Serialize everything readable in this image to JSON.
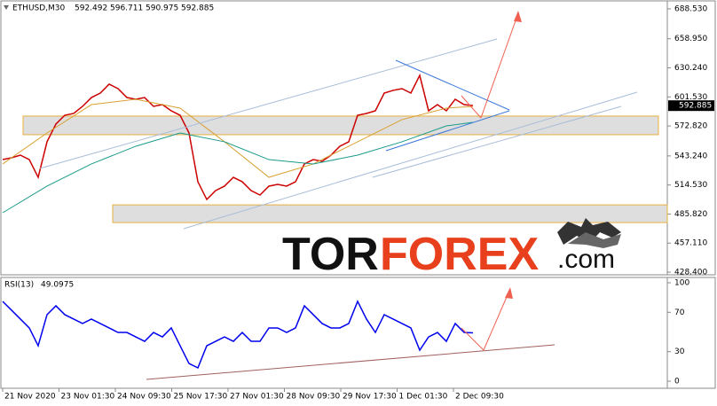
{
  "chart_data": [
    {
      "type": "line",
      "symbol": "ETHUSD,M30",
      "ohlc": [
        592.492,
        596.711,
        590.975,
        592.885
      ],
      "current_price": 592.885,
      "x_tick_labels": [
        "21 Nov 2020",
        "23 Nov 01:30",
        "24 Nov 09:30",
        "25 Nov 17:30",
        "27 Nov 01:30",
        "28 Nov 09:30",
        "29 Nov 17:30",
        "1 Dec 01:30",
        "2 Dec 09:30"
      ],
      "ylim": [
        425.8,
        695.5
      ],
      "yticks": [
        {
          "value": 688.53,
          "label": "688.530"
        },
        {
          "value": 658.95,
          "label": "658.950"
        },
        {
          "value": 630.24,
          "label": "630.240"
        },
        {
          "value": 601.53,
          "label": "601.530"
        },
        {
          "value": 572.82,
          "label": "572.820"
        },
        {
          "value": 543.24,
          "label": "543.240"
        },
        {
          "value": 514.53,
          "label": "514.530"
        },
        {
          "value": 485.82,
          "label": "485.820"
        },
        {
          "value": 457.11,
          "label": "457.110"
        },
        {
          "value": 428.4,
          "label": "428.400"
        }
      ],
      "series": [
        {
          "color": "#cc0000",
          "values": [
            539.6,
            541.4,
            544.0,
            539.6,
            522.1,
            557.2,
            574.7,
            583.4,
            585.2,
            592.2,
            600.9,
            605.3,
            614.1,
            609.7,
            600.9,
            599.2,
            600.9,
            592.2,
            593.9,
            587.8,
            583.4,
            565.9,
            517.7,
            500.2,
            509.0,
            513.4,
            522.1,
            517.7,
            509.0,
            504.6,
            513.4,
            515.1,
            513.4,
            517.7,
            535.3,
            539.6,
            537.9,
            544.0,
            552.8,
            557.2,
            583.4,
            585.2,
            587.8,
            605.3,
            608.0,
            609.7,
            605.3,
            622.8,
            587.8,
            593.9,
            587.8,
            599.2,
            593.9,
            592.9
          ]
        },
        {
          "color": "#d9a030",
          "x": [
            0,
            5,
            10,
            15,
            20,
            25,
            30,
            35,
            40,
            45,
            50,
            53
          ],
          "values": [
            535.3,
            565.9,
            593.9,
            599.2,
            590.4,
            557.2,
            522.1,
            535.3,
            557.2,
            579.1,
            590.4,
            592.2
          ]
        },
        {
          "color": "#1a9a8a",
          "x": [
            0,
            5,
            10,
            15,
            20,
            25,
            30,
            35,
            40,
            45,
            50,
            53
          ],
          "values": [
            487.1,
            513.4,
            535.3,
            552.8,
            565.9,
            557.2,
            539.6,
            535.3,
            544.0,
            557.2,
            572.9,
            576.4
          ]
        }
      ],
      "zones": [
        {
          "from": 564.2,
          "to": 582.6
        },
        {
          "from": 477.4,
          "to": 494.9
        }
      ]
    },
    {
      "type": "line",
      "title": "RSI(13)",
      "last_value": 49.0975,
      "ylim": [
        -7.2,
        105.4
      ],
      "yticks": [
        100,
        70,
        30,
        0
      ],
      "series": [
        {
          "color": "#0000ee",
          "values": [
            81.1,
            72.1,
            63.1,
            54.1,
            36.0,
            67.6,
            76.6,
            67.6,
            63.1,
            58.6,
            63.1,
            58.6,
            54.1,
            49.5,
            49.5,
            45.0,
            40.5,
            49.5,
            45.0,
            54.1,
            36.0,
            18.0,
            13.5,
            36.0,
            40.5,
            45.0,
            40.5,
            49.5,
            40.5,
            40.5,
            54.1,
            54.1,
            49.5,
            54.1,
            76.6,
            67.6,
            58.6,
            54.1,
            54.1,
            58.6,
            81.1,
            63.1,
            49.5,
            67.6,
            63.1,
            58.6,
            54.1,
            31.5,
            45.0,
            49.5,
            40.5,
            58.6,
            49.5,
            49.1
          ]
        }
      ]
    }
  ],
  "logo": {
    "part1": "TOR",
    "part2": "FOREX",
    "part3": ".com"
  }
}
